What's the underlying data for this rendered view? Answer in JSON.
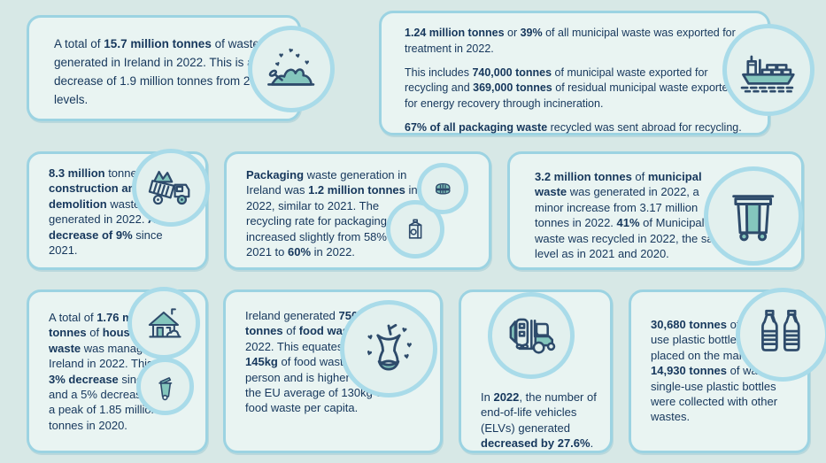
{
  "colors": {
    "background": "#d7e8e6",
    "card_bg": "#e9f4f2",
    "card_border": "#9cd3e2",
    "circle_bg": "#e2f0ee",
    "circle_border": "#a9dbe9",
    "icon_stroke": "#2e4b6b",
    "icon_fill": "#84c6bd",
    "text": "#16375c"
  },
  "icons": {
    "total_waste": "waste-pile-icon",
    "exported": "cargo-ship-icon",
    "construction": "dump-truck-icon",
    "packaging": [
      "milk-carton-icon",
      "food-container-icon"
    ],
    "municipal": "municipal-bin-icon",
    "household": [
      "house-icon",
      "wheelie-bin-icon"
    ],
    "food": "apple-core-icon",
    "elv": "forklift-car-icon",
    "bottles": "plastic-bottles-icon"
  },
  "cards": {
    "total_waste": {
      "paragraphs": [
        [
          {
            "t": "A total of ",
            "b": false
          },
          {
            "t": "15.7 million tonnes",
            "b": true
          },
          {
            "t": " of waste was generated in Ireland in 2022. This is a decrease of 1.9 million tonnes from 2021 levels.",
            "b": false
          }
        ]
      ]
    },
    "exported": {
      "paragraphs": [
        [
          {
            "t": "1.24 million tonnes",
            "b": true
          },
          {
            "t": " or ",
            "b": false
          },
          {
            "t": "39%",
            "b": true
          },
          {
            "t": " of all municipal waste was exported for treatment in 2022.",
            "b": false
          }
        ],
        [
          {
            "t": "This includes ",
            "b": false
          },
          {
            "t": "740,000 tonnes",
            "b": true
          },
          {
            "t": " of municipal waste exported for recycling and ",
            "b": false
          },
          {
            "t": "369,000 tonnes",
            "b": true
          },
          {
            "t": " of residual municipal waste exported for energy recovery through incineration.",
            "b": false
          }
        ],
        [
          {
            "t": "67% of all packaging waste",
            "b": true
          },
          {
            "t": " recycled was sent abroad for recycling.",
            "b": false
          }
        ]
      ]
    },
    "construction": {
      "paragraphs": [
        [
          {
            "t": "8.3 million",
            "b": true
          },
          {
            "t": " tonnes of ",
            "b": false
          },
          {
            "t": "construction and demolition",
            "b": true
          },
          {
            "t": " waste was generated in 2022. ",
            "b": false
          },
          {
            "t": "A decrease of 9%",
            "b": true
          },
          {
            "t": " since 2021.",
            "b": false
          }
        ]
      ]
    },
    "packaging": {
      "paragraphs": [
        [
          {
            "t": "Packaging",
            "b": true
          },
          {
            "t": " waste generation in Ireland was ",
            "b": false
          },
          {
            "t": "1.2 million tonnes",
            "b": true
          },
          {
            "t": " in 2022, similar to 2021. The recycling rate for packaging waste increased slightly from 58% in 2021 to ",
            "b": false
          },
          {
            "t": "60%",
            "b": true
          },
          {
            "t": " in 2022.",
            "b": false
          }
        ]
      ]
    },
    "municipal": {
      "paragraphs": [
        [
          {
            "t": "3.2 million tonnes",
            "b": true
          },
          {
            "t": " of ",
            "b": false
          },
          {
            "t": "municipal waste",
            "b": true
          },
          {
            "t": " was generated in 2022, a minor increase from 3.17 million tonnes in 2022. ",
            "b": false
          },
          {
            "t": "41%",
            "b": true
          },
          {
            "t": " of Municipal waste was recycled in 2022, the same level as in 2021 and 2020.",
            "b": false
          }
        ]
      ]
    },
    "household": {
      "paragraphs": [
        [
          {
            "t": "A total of ",
            "b": false
          },
          {
            "t": "1.76 million tonnes",
            "b": true
          },
          {
            "t": " of ",
            "b": false
          },
          {
            "t": "household waste",
            "b": true
          },
          {
            "t": " was managed in Ireland in 2022. This is a ",
            "b": false
          },
          {
            "t": "3% decrease",
            "b": true
          },
          {
            "t": " since 2021 and a 5% decrease from a peak of 1.85 million tonnes in 2020.",
            "b": false
          }
        ]
      ]
    },
    "food": {
      "paragraphs": [
        [
          {
            "t": "Ireland generated ",
            "b": false
          },
          {
            "t": "750,000 tonnes",
            "b": true
          },
          {
            "t": " of ",
            "b": false
          },
          {
            "t": "food waste",
            "b": true
          },
          {
            "t": " in 2022. This equates to ",
            "b": false
          },
          {
            "t": "145kg",
            "b": true
          },
          {
            "t": " of food waste per person and is higher than the EU average of 130kg of food waste per capita.",
            "b": false
          }
        ]
      ]
    },
    "elv": {
      "paragraphs": [
        [
          {
            "t": "In ",
            "b": false
          },
          {
            "t": "2022",
            "b": true
          },
          {
            "t": ", the number of end-of-life vehicles (ELVs) generated ",
            "b": false
          },
          {
            "t": "decreased by 27.6%",
            "b": true
          },
          {
            "t": ".",
            "b": false
          }
        ]
      ]
    },
    "bottles": {
      "paragraphs": [
        [
          {
            "t": "30,680 tonnes",
            "b": true
          },
          {
            "t": " of single-use plastic bottles were placed on the market and ",
            "b": false
          },
          {
            "t": "14,930 tonnes",
            "b": true
          },
          {
            "t": " of waste single-use plastic bottles were collected with other wastes.",
            "b": false
          }
        ]
      ]
    }
  }
}
